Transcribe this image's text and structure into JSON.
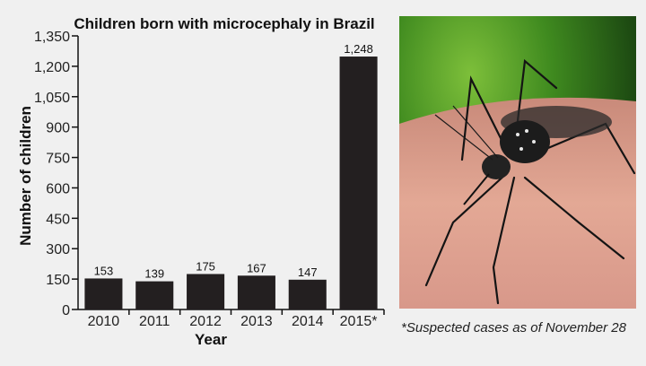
{
  "chart_data": {
    "type": "bar",
    "title": "Children born with microcephaly in Brazil",
    "xlabel": "Year",
    "ylabel": "Number of children",
    "categories": [
      "2010",
      "2011",
      "2012",
      "2013",
      "2014",
      "2015*"
    ],
    "values": [
      153,
      139,
      175,
      167,
      147,
      1248
    ],
    "data_labels": [
      "153",
      "139",
      "175",
      "167",
      "147",
      "1,248"
    ],
    "ylim": [
      0,
      1350
    ],
    "yticks": [
      0,
      150,
      300,
      450,
      600,
      750,
      900,
      1050,
      1200,
      1350
    ],
    "ytick_labels": [
      "0",
      "150",
      "300",
      "450",
      "600",
      "750",
      "900",
      "1,050",
      "1,200",
      "1,350"
    ],
    "grid": false,
    "bar_color": "#231f20"
  },
  "photo": {
    "subject": "mosquito-on-skin"
  },
  "footnote": "*Suspected cases as of November 28"
}
